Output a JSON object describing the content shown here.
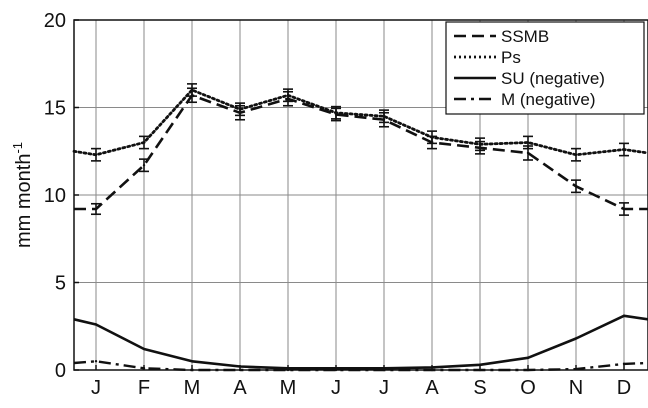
{
  "chart_data": {
    "type": "line",
    "title": "",
    "ylabel": "mm month",
    "ylabel_superscript": "-1",
    "xlabel": "",
    "categories": [
      "J",
      "F",
      "M",
      "A",
      "M",
      "J",
      "J",
      "A",
      "S",
      "O",
      "N",
      "D"
    ],
    "ylim": [
      0,
      20
    ],
    "yticks": [
      0,
      5,
      10,
      15,
      20
    ],
    "grid": true,
    "legend_position": "top-right",
    "series": [
      {
        "name": "SSMB",
        "line_style": "dashed",
        "values": [
          9.2,
          11.7,
          15.7,
          14.7,
          15.5,
          14.6,
          14.3,
          13.0,
          12.7,
          12.4,
          10.5,
          9.2
        ],
        "errors": [
          0.3,
          0.35,
          0.4,
          0.4,
          0.4,
          0.35,
          0.4,
          0.35,
          0.35,
          0.4,
          0.35,
          0.35
        ],
        "edge_start": 9.2,
        "edge_end": 9.2
      },
      {
        "name": "Ps",
        "line_style": "dotted",
        "values": [
          12.3,
          13.0,
          16.0,
          14.9,
          15.7,
          14.7,
          14.5,
          13.3,
          12.9,
          13.0,
          12.3,
          12.6
        ],
        "edge_start": 12.5,
        "edge_end": 12.4
      },
      {
        "name": "SU (negative)",
        "line_style": "solid",
        "values": [
          2.6,
          1.2,
          0.5,
          0.2,
          0.1,
          0.1,
          0.1,
          0.15,
          0.3,
          0.7,
          1.8,
          3.1
        ],
        "edge_start": 2.9,
        "edge_end": 2.9
      },
      {
        "name": "M (negative)",
        "line_style": "dashdot",
        "values": [
          0.5,
          0.1,
          0.0,
          0.0,
          0.0,
          0.0,
          0.0,
          0.0,
          0.0,
          0.0,
          0.05,
          0.35
        ],
        "edge_start": 0.4,
        "edge_end": 0.4
      }
    ]
  }
}
